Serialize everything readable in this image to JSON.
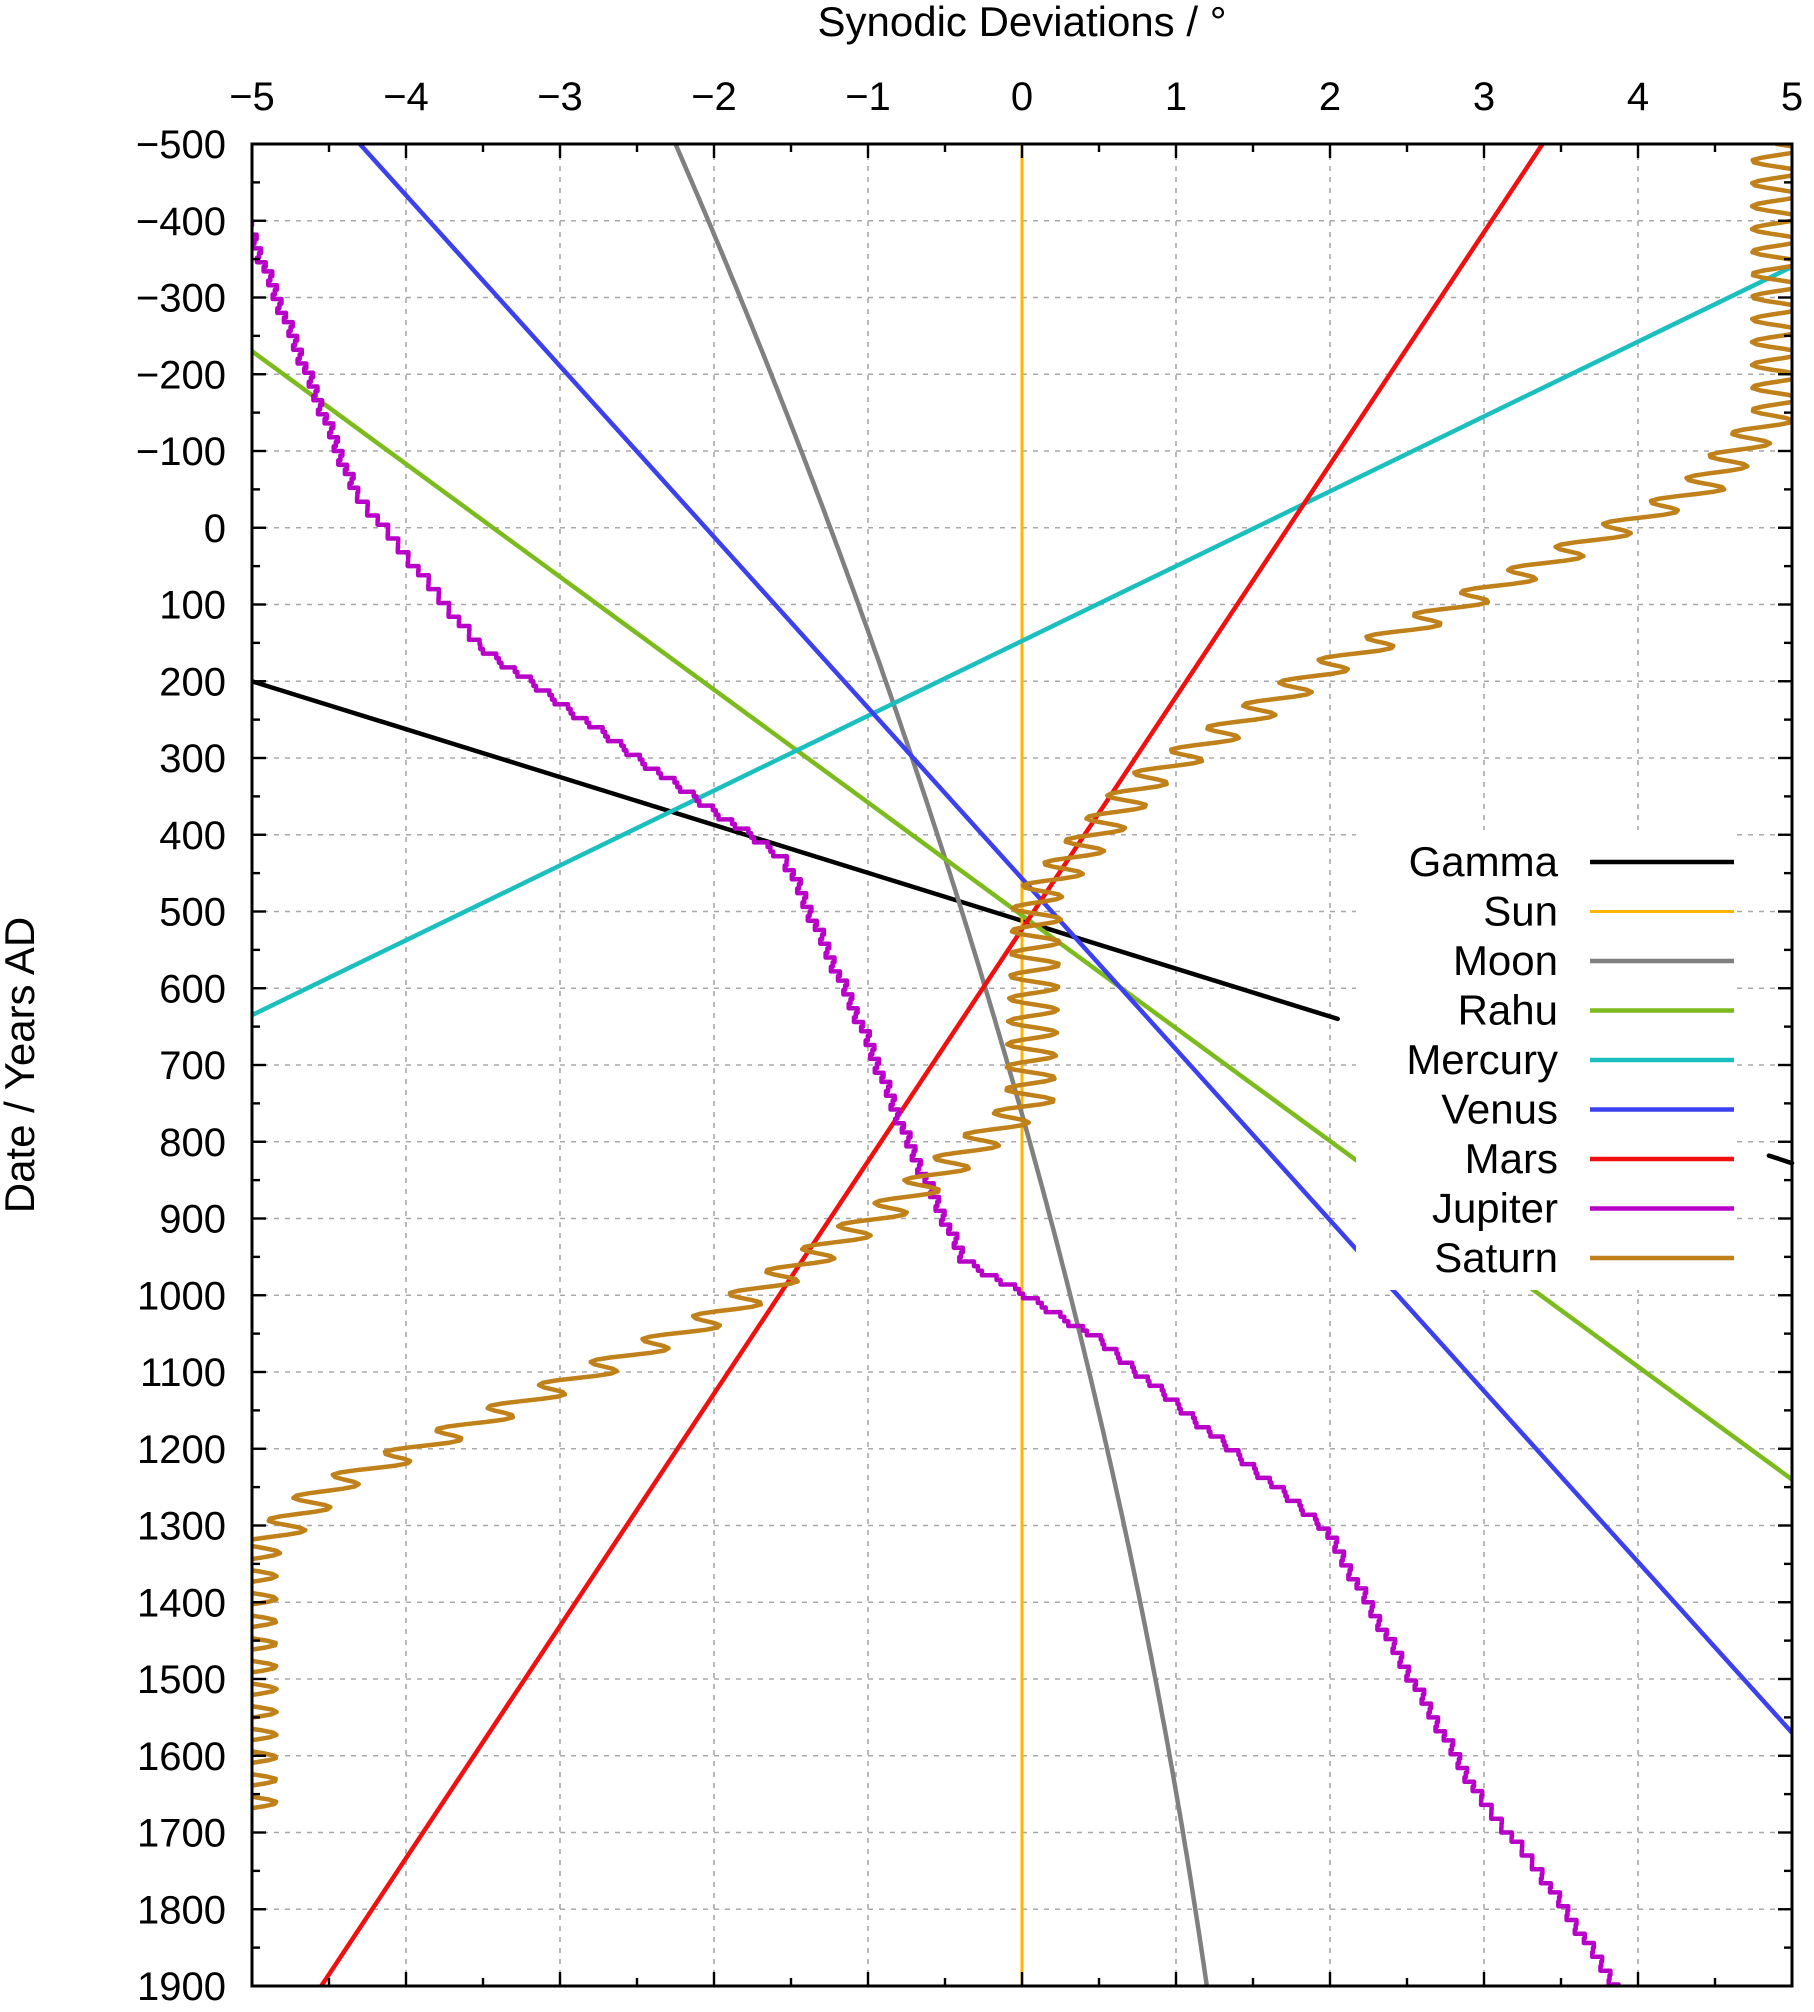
{
  "chart_data": {
    "type": "line",
    "title": "",
    "xlabel": "Synodic Deviations / °",
    "ylabel": "Date / Years AD",
    "xlim": [
      -5,
      5
    ],
    "ylim": [
      -500,
      1900
    ],
    "y_inverted": true,
    "grid": true,
    "legend_position": "right",
    "x_ticks": [
      {
        "value": -5,
        "label": "−5"
      },
      {
        "value": -4,
        "label": "−4"
      },
      {
        "value": -3,
        "label": "−3"
      },
      {
        "value": -2,
        "label": "−2"
      },
      {
        "value": -1,
        "label": "−1"
      },
      {
        "value": 0,
        "label": "0"
      },
      {
        "value": 1,
        "label": "1"
      },
      {
        "value": 2,
        "label": "2"
      },
      {
        "value": 3,
        "label": "3"
      },
      {
        "value": 4,
        "label": "4"
      },
      {
        "value": 5,
        "label": "5"
      }
    ],
    "y_ticks": [
      {
        "value": -500,
        "label": "−500"
      },
      {
        "value": -400,
        "label": "−400"
      },
      {
        "value": -300,
        "label": "−300"
      },
      {
        "value": -200,
        "label": "−200"
      },
      {
        "value": -100,
        "label": "−100"
      },
      {
        "value": 0,
        "label": "0"
      },
      {
        "value": 100,
        "label": "100"
      },
      {
        "value": 200,
        "label": "200"
      },
      {
        "value": 300,
        "label": "300"
      },
      {
        "value": 400,
        "label": "400"
      },
      {
        "value": 500,
        "label": "500"
      },
      {
        "value": 600,
        "label": "600"
      },
      {
        "value": 700,
        "label": "700"
      },
      {
        "value": 800,
        "label": "800"
      },
      {
        "value": 900,
        "label": "900"
      },
      {
        "value": 1000,
        "label": "1000"
      },
      {
        "value": 1100,
        "label": "1100"
      },
      {
        "value": 1200,
        "label": "1200"
      },
      {
        "value": 1300,
        "label": "1300"
      },
      {
        "value": 1400,
        "label": "1400"
      },
      {
        "value": 1500,
        "label": "1500"
      },
      {
        "value": 1600,
        "label": "1600"
      },
      {
        "value": 1700,
        "label": "1700"
      },
      {
        "value": 1800,
        "label": "1800"
      },
      {
        "value": 1900,
        "label": "1900"
      }
    ],
    "series": [
      {
        "name": "Gamma",
        "color": "#000000",
        "style": "linear",
        "points": [
          [
            -5,
            200
          ],
          [
            2.05,
            640
          ]
        ],
        "legend_masked": [
          [
            4.85,
            818
          ],
          [
            5,
            828
          ]
        ]
      },
      {
        "name": "Sun",
        "color": "#ffb400",
        "style": "linear",
        "points": [
          [
            0,
            -500
          ],
          [
            0,
            1900
          ]
        ]
      },
      {
        "name": "Moon",
        "color": "#808080",
        "style": "quadratic",
        "points": [
          [
            -2.25,
            -500
          ],
          [
            0.05,
            800
          ],
          [
            1.2,
            1900
          ]
        ]
      },
      {
        "name": "Rahu",
        "color": "#7cbb1d",
        "style": "linear",
        "points": [
          [
            -5,
            -230
          ],
          [
            5,
            1240
          ]
        ]
      },
      {
        "name": "Mercury",
        "color": "#1cbfbf",
        "style": "linear",
        "points": [
          [
            -5,
            635
          ],
          [
            5,
            -340
          ]
        ]
      },
      {
        "name": "Venus",
        "color": "#3c40ef",
        "style": "linear",
        "points": [
          [
            -4.3,
            -500
          ],
          [
            5,
            1570
          ]
        ]
      },
      {
        "name": "Mars",
        "color": "#f01010",
        "style": "linear",
        "points": [
          [
            3.38,
            -500
          ],
          [
            -4.55,
            1900
          ]
        ]
      },
      {
        "name": "Jupiter",
        "color": "#b800c8",
        "style": "staircase",
        "points": [
          [
            -5,
            -400
          ],
          [
            -4.3,
            -50
          ],
          [
            -3.5,
            150
          ],
          [
            -2.3,
            320
          ],
          [
            -1.5,
            430
          ],
          [
            -1,
            650
          ],
          [
            -0.7,
            800
          ],
          [
            -0.35,
            950
          ],
          [
            0.5,
            1050
          ],
          [
            2,
            1300
          ],
          [
            3,
            1650
          ],
          [
            3.4,
            1750
          ],
          [
            3.9,
            1900
          ]
        ]
      },
      {
        "name": "Saturn",
        "color": "#c0801a",
        "style": "oscillating",
        "points": [
          [
            4.9,
            -500
          ],
          [
            4.9,
            -150
          ],
          [
            4.4,
            -50
          ],
          [
            2.0,
            180
          ],
          [
            0.8,
            330
          ],
          [
            0.1,
            480
          ],
          [
            0.05,
            750
          ],
          [
            -0.8,
            880
          ],
          [
            -2.0,
            1030
          ],
          [
            -4.5,
            1250
          ],
          [
            -5,
            1340
          ],
          [
            -5,
            1680
          ]
        ]
      }
    ]
  }
}
